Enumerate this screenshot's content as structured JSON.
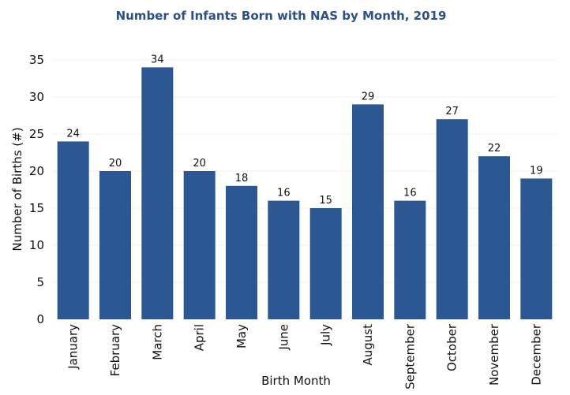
{
  "chart_data": {
    "type": "bar",
    "title": "Number of Infants Born with NAS by Month, 2019",
    "xlabel": "Birth Month",
    "ylabel": "Number of Births (#)",
    "categories": [
      "January",
      "February",
      "March",
      "April",
      "May",
      "June",
      "July",
      "August",
      "September",
      "October",
      "November",
      "December"
    ],
    "values": [
      24,
      20,
      34,
      20,
      18,
      16,
      15,
      29,
      16,
      27,
      22,
      19
    ],
    "ylim": [
      0,
      35
    ],
    "yticks": [
      0,
      5,
      10,
      15,
      20,
      25,
      30,
      35
    ],
    "grid": true,
    "bar_color": "#2b5793",
    "title_color": "#2b5189"
  }
}
